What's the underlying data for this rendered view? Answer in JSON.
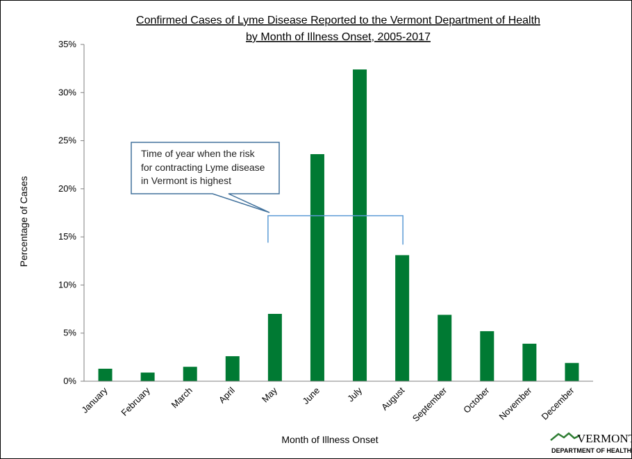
{
  "chart_data": {
    "type": "bar",
    "title": [
      "Confirmed Cases of Lyme Disease Reported to the Vermont Department of Health",
      "by Month of Illness Onset, 2005-2017"
    ],
    "xlabel": "Month  of Illness Onset",
    "ylabel": "Percentage of Cases",
    "categories": [
      "January",
      "February",
      "March",
      "April",
      "May",
      "June",
      "July",
      "August",
      "September",
      "October",
      "November",
      "December"
    ],
    "values": [
      1.3,
      0.9,
      1.5,
      2.6,
      7.0,
      23.6,
      32.4,
      13.1,
      6.9,
      5.2,
      3.9,
      1.9
    ],
    "ylim": [
      0,
      35
    ],
    "yticks": [
      0,
      5,
      10,
      15,
      20,
      25,
      30,
      35
    ],
    "ytick_labels": [
      "0%",
      "5%",
      "10%",
      "15%",
      "20%",
      "25%",
      "30%",
      "35%"
    ],
    "bar_color": "#007a33",
    "grid": false,
    "annotation": {
      "lines": [
        "Time of year when the risk",
        "for contracting Lyme disease",
        "in Vermont  is highest"
      ],
      "bracket_from": "May",
      "bracket_to": "August",
      "color": "#41719c"
    }
  },
  "logo": {
    "top": "VERMONT",
    "bottom": "DEPARTMENT OF HEALTH",
    "color": "#2e7d32"
  }
}
